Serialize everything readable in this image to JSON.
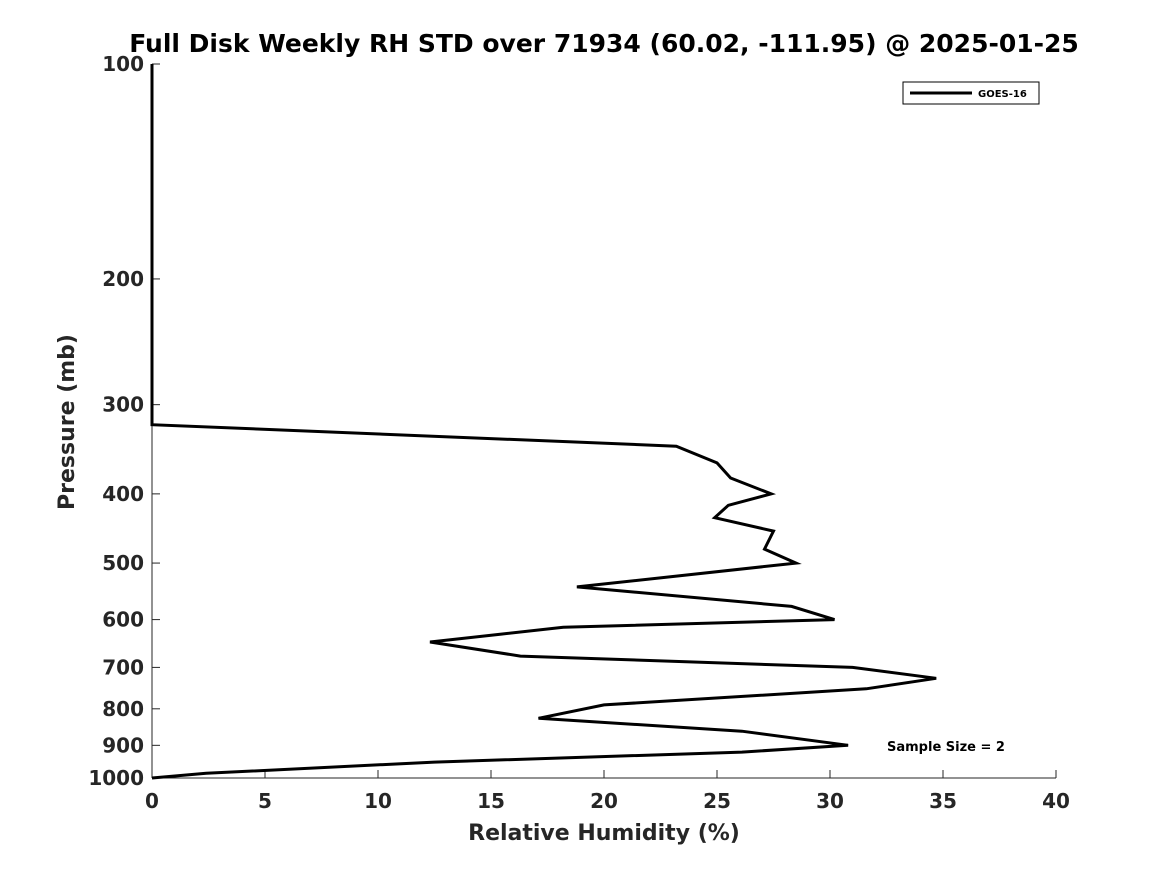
{
  "chart_data": {
    "type": "line",
    "title": "Full Disk Weekly RH STD over 71934 (60.02, -111.95) @ 2025-01-25",
    "xlabel": "Relative Humidity (%)",
    "ylabel": "Pressure (mb)",
    "xlim": [
      0,
      40
    ],
    "ylim": [
      100,
      1000
    ],
    "y_scale": "log",
    "y_reversed": true,
    "x_ticks": [
      0,
      5,
      10,
      15,
      20,
      25,
      30,
      35,
      40
    ],
    "y_ticks": [
      100,
      200,
      300,
      400,
      500,
      600,
      700,
      800,
      900,
      1000
    ],
    "grid": false,
    "legend_position": "top-right",
    "series": [
      {
        "name": "GOES-16",
        "color": "#000000",
        "points": [
          [
            0,
            100
          ],
          [
            0,
            150
          ],
          [
            0,
            200
          ],
          [
            0,
            250
          ],
          [
            0,
            300
          ],
          [
            0,
            320
          ],
          [
            23.2,
            343
          ],
          [
            25.0,
            362
          ],
          [
            25.6,
            380
          ],
          [
            27.4,
            400
          ],
          [
            25.5,
            415
          ],
          [
            24.9,
            432
          ],
          [
            27.5,
            451
          ],
          [
            27.1,
            478
          ],
          [
            28.5,
            500
          ],
          [
            18.8,
            540
          ],
          [
            28.3,
            575
          ],
          [
            30.2,
            600
          ],
          [
            18.2,
            615
          ],
          [
            12.3,
            645
          ],
          [
            16.3,
            675
          ],
          [
            31.0,
            700
          ],
          [
            34.7,
            725
          ],
          [
            31.6,
            750
          ],
          [
            20.0,
            790
          ],
          [
            17.1,
            825
          ],
          [
            26.1,
            860
          ],
          [
            30.8,
            900
          ],
          [
            26.1,
            920
          ],
          [
            12.5,
            950
          ],
          [
            2.4,
            985
          ],
          [
            0,
            1000
          ]
        ]
      }
    ],
    "annotations": [
      "Sample Size = 2"
    ]
  }
}
